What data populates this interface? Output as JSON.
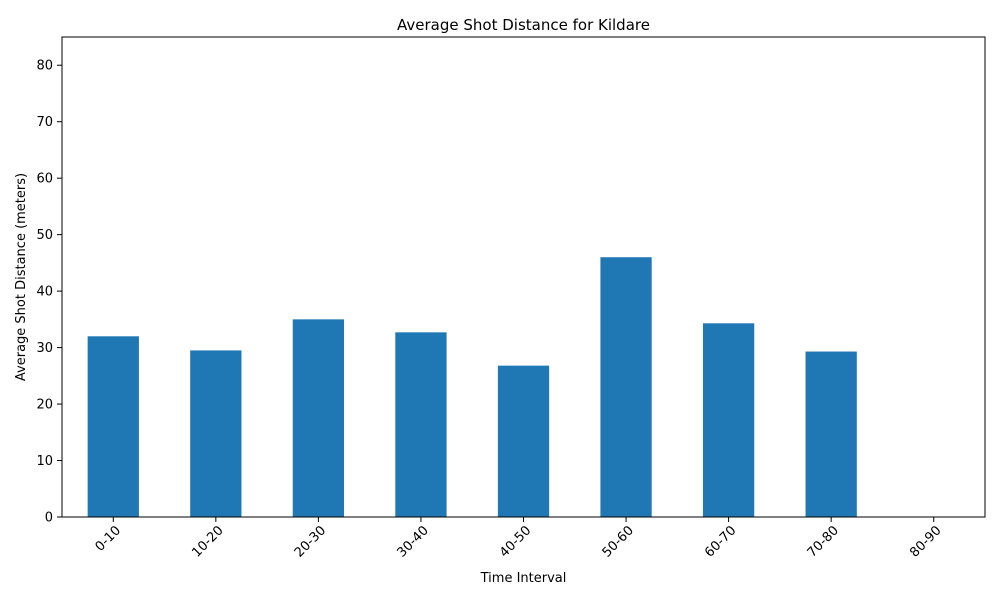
{
  "chart_data": {
    "type": "bar",
    "title": "Average Shot Distance for Kildare",
    "xlabel": "Time Interval",
    "ylabel": "Average Shot Distance (meters)",
    "categories": [
      "0-10",
      "10-20",
      "20-30",
      "30-40",
      "40-50",
      "50-60",
      "60-70",
      "70-80",
      "80-90"
    ],
    "values": [
      32.0,
      29.5,
      35.0,
      32.7,
      26.8,
      46.0,
      34.3,
      29.3,
      0
    ],
    "ylim": [
      0,
      85
    ],
    "yticks": [
      0,
      10,
      20,
      30,
      40,
      50,
      60,
      70,
      80
    ],
    "bar_color": "#1f77b4",
    "grid": false,
    "legend": "none",
    "xtick_rotation": 45
  }
}
